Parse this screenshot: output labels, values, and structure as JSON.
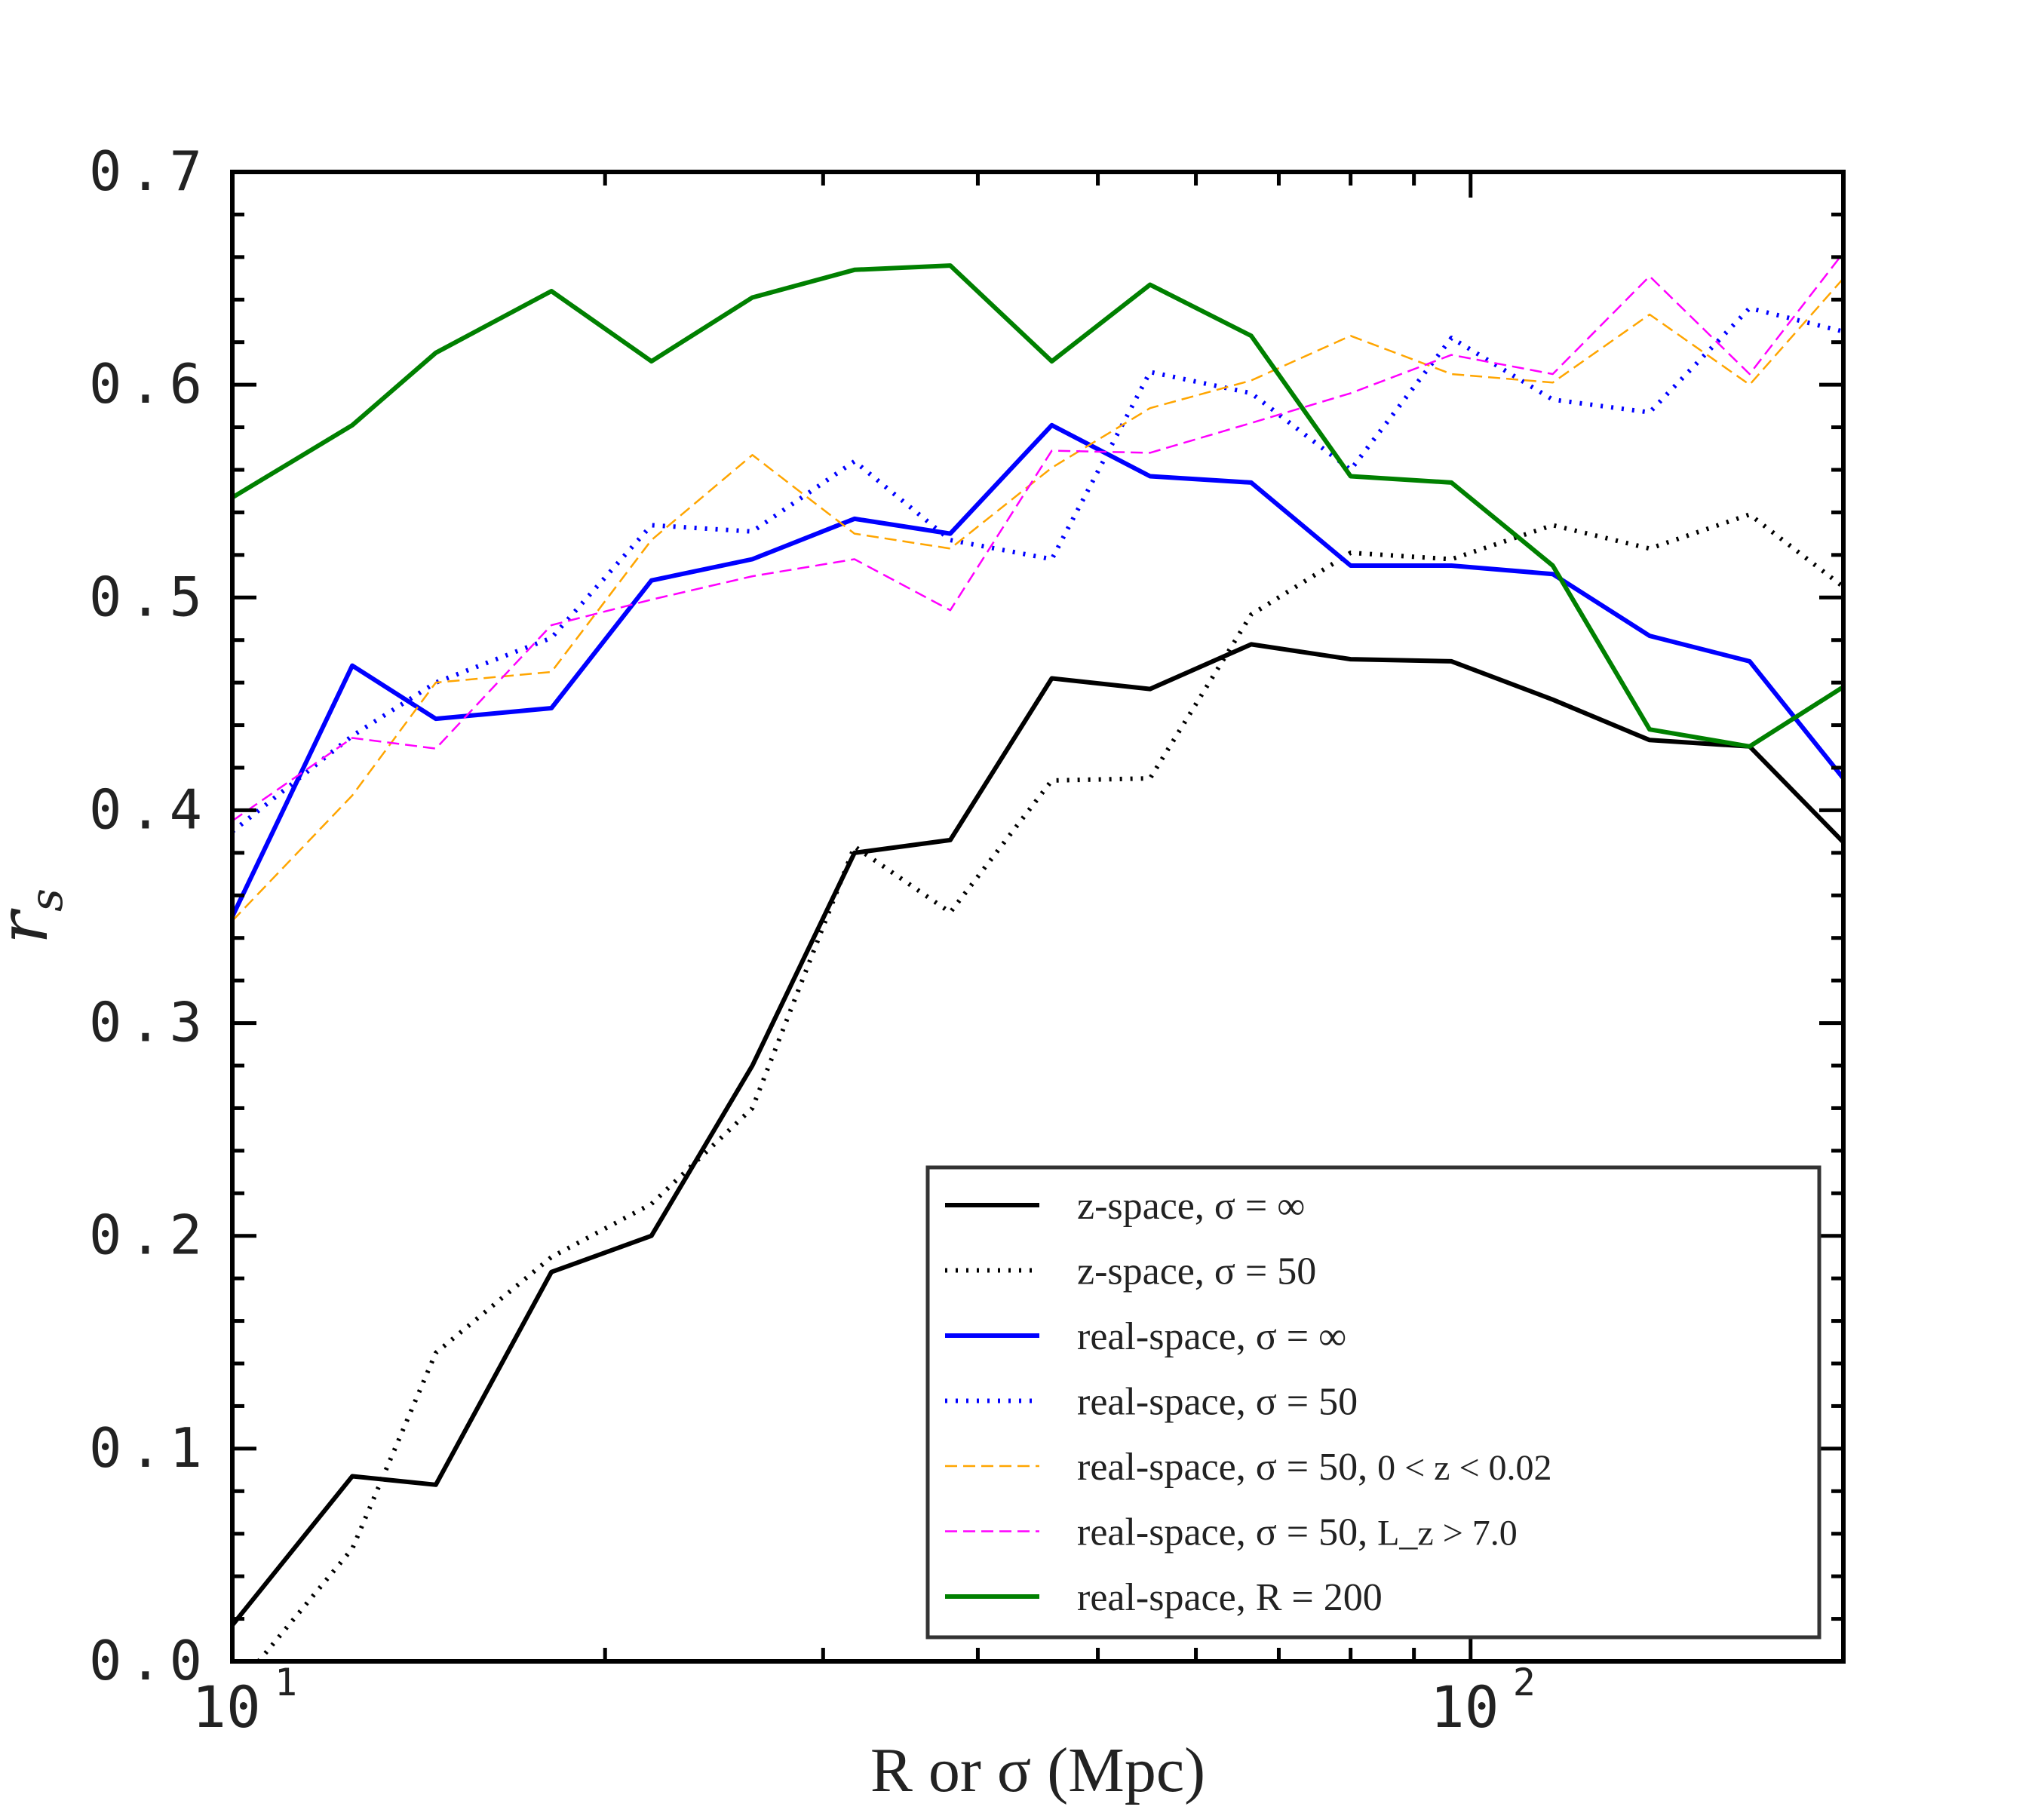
{
  "chart_data": {
    "type": "line",
    "xscale": "log",
    "xlim": [
      10,
      200
    ],
    "ylim": [
      0.0,
      0.7
    ],
    "xlabel": "R or σ (Mpc)",
    "xlabel_parts": {
      "var1": "R",
      "mid": " or ",
      "var2": "σ",
      "unit": " (Mpc)"
    },
    "ylabel": "r_s",
    "ylabel_parts": {
      "base": "r",
      "sub": "s"
    },
    "yticks": [
      {
        "value": 0.0,
        "label": "0.0"
      },
      {
        "value": 0.1,
        "label": "0.1"
      },
      {
        "value": 0.2,
        "label": "0.2"
      },
      {
        "value": 0.3,
        "label": "0.3"
      },
      {
        "value": 0.4,
        "label": "0.4"
      },
      {
        "value": 0.5,
        "label": "0.5"
      },
      {
        "value": 0.6,
        "label": "0.6"
      },
      {
        "value": 0.7,
        "label": "0.7"
      }
    ],
    "xticks": [
      {
        "value": 10,
        "base": "10",
        "exp": "1"
      },
      {
        "value": 100,
        "base": "10",
        "exp": "2"
      }
    ],
    "x_minor_ticks": [
      20,
      30,
      40,
      50,
      60,
      70,
      80,
      90,
      200
    ],
    "y_minor_step": 0.02,
    "grid": false,
    "legend_position": "lower-right",
    "series": [
      {
        "name": "z-space, σ=∞",
        "legend": {
          "prefix_it": "z",
          "text": "-space, ",
          "math": "σ = ∞"
        },
        "color": "#000000",
        "style": "solid",
        "width": "thick",
        "x": [
          10,
          12.5,
          14.6,
          18.1,
          21.8,
          26.3,
          31.8,
          38.0,
          45.9,
          55.1,
          66.5,
          80.0,
          96.5,
          116.5,
          139.5,
          168.0,
          200
        ],
        "y": [
          0.017,
          0.087,
          0.083,
          0.183,
          0.2,
          0.28,
          0.38,
          0.386,
          0.462,
          0.457,
          0.478,
          0.471,
          0.47,
          0.452,
          0.433,
          0.43,
          0.385
        ]
      },
      {
        "name": "z-space, σ=50",
        "legend": {
          "prefix_it": "z",
          "text": "-space, ",
          "math": "σ = 50"
        },
        "color": "#000000",
        "style": "dotted",
        "width": "thick",
        "x": [
          10.5,
          12.5,
          14.6,
          18.1,
          21.8,
          26.3,
          31.8,
          38.0,
          45.9,
          55.1,
          66.5,
          80.0,
          96.5,
          116.5,
          139.5,
          168.0,
          200
        ],
        "y": [
          0.0,
          0.053,
          0.145,
          0.19,
          0.215,
          0.26,
          0.383,
          0.352,
          0.414,
          0.415,
          0.492,
          0.521,
          0.518,
          0.534,
          0.523,
          0.539,
          0.505
        ]
      },
      {
        "name": "real-space, σ=∞",
        "legend": {
          "prefix_it": "",
          "text": "real-space, ",
          "math": "σ = ∞"
        },
        "color": "#0000ff",
        "style": "solid",
        "width": "thick",
        "x": [
          10,
          12.5,
          14.6,
          18.1,
          21.8,
          26.3,
          31.8,
          38.0,
          45.9,
          55.1,
          66.5,
          80.0,
          96.5,
          116.5,
          139.5,
          168.0,
          200
        ],
        "y": [
          0.35,
          0.468,
          0.443,
          0.448,
          0.508,
          0.518,
          0.537,
          0.53,
          0.581,
          0.557,
          0.554,
          0.515,
          0.515,
          0.511,
          0.482,
          0.47,
          0.415
        ]
      },
      {
        "name": "real-space, σ=50",
        "legend": {
          "prefix_it": "",
          "text": "real-space, ",
          "math": "σ = 50"
        },
        "color": "#0000ff",
        "style": "dotted",
        "width": "thick",
        "x": [
          10,
          12.5,
          14.6,
          18.1,
          21.8,
          26.3,
          31.8,
          38.0,
          45.9,
          55.1,
          66.5,
          80.0,
          96.5,
          116.5,
          139.5,
          168.0,
          200
        ],
        "y": [
          0.39,
          0.435,
          0.46,
          0.481,
          0.534,
          0.531,
          0.564,
          0.527,
          0.518,
          0.606,
          0.596,
          0.56,
          0.622,
          0.593,
          0.587,
          0.636,
          0.625
        ]
      },
      {
        "name": "real-space, σ=50, 0<z<0.02",
        "legend": {
          "prefix_it": "",
          "text": "real-space, ",
          "math": "σ = 50",
          "extra": "0 < z < 0.02"
        },
        "color": "#ffa500",
        "style": "dashed",
        "width": "thin",
        "x": [
          10,
          12.5,
          14.6,
          18.1,
          21.8,
          26.3,
          31.8,
          38.0,
          45.9,
          55.1,
          66.5,
          80.0,
          96.5,
          116.5,
          139.5,
          168.0,
          200
        ],
        "y": [
          0.348,
          0.407,
          0.46,
          0.465,
          0.527,
          0.567,
          0.53,
          0.523,
          0.561,
          0.589,
          0.602,
          0.623,
          0.605,
          0.601,
          0.633,
          0.6,
          0.65
        ]
      },
      {
        "name": "real-space, σ=50, Lz>7.0",
        "legend": {
          "prefix_it": "",
          "text": "real-space, ",
          "math": "σ = 50",
          "extra": "L_z > 7.0"
        },
        "color": "#ff00ff",
        "style": "dashed",
        "width": "thin",
        "x": [
          10,
          12.5,
          14.6,
          18.1,
          21.8,
          26.3,
          31.8,
          38.0,
          45.9,
          55.1,
          66.5,
          80.0,
          96.5,
          116.5,
          139.5,
          168.0,
          200
        ],
        "y": [
          0.395,
          0.434,
          0.429,
          0.487,
          0.499,
          0.51,
          0.518,
          0.494,
          0.569,
          0.568,
          0.582,
          0.596,
          0.614,
          0.605,
          0.651,
          0.605,
          0.662
        ]
      },
      {
        "name": "real-space, R=200",
        "legend": {
          "prefix_it": "",
          "text": "real-space, ",
          "math": "R = 200"
        },
        "color": "#008000",
        "style": "solid",
        "width": "thick",
        "x": [
          10,
          12.5,
          14.6,
          18.1,
          21.8,
          26.3,
          31.8,
          38.0,
          45.9,
          55.1,
          66.5,
          80.0,
          96.5,
          116.5,
          139.5,
          168.0,
          200
        ],
        "y": [
          0.547,
          0.581,
          0.615,
          0.644,
          0.611,
          0.641,
          0.654,
          0.656,
          0.611,
          0.647,
          0.623,
          0.557,
          0.554,
          0.515,
          0.438,
          0.43,
          0.458
        ]
      }
    ]
  }
}
